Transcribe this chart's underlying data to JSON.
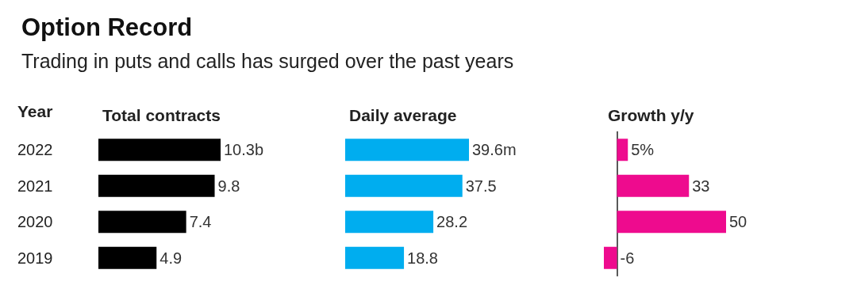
{
  "chart_data": [
    {
      "type": "other",
      "title": "Option Record",
      "subtitle": "Trading in puts and calls has surged over the past years"
    },
    {
      "type": "bar",
      "orientation": "horizontal",
      "title": "Total contracts",
      "ylabel": "Year",
      "categories": [
        "2022",
        "2021",
        "2020",
        "2019"
      ],
      "values": [
        10.3,
        9.8,
        7.4,
        4.9
      ],
      "value_labels": [
        "10.3b",
        "9.8",
        "7.4",
        "4.9"
      ],
      "color": "#000000",
      "tick_labels": "y"
    },
    {
      "type": "bar",
      "orientation": "horizontal",
      "title": "Daily average",
      "categories": [
        "2022",
        "2021",
        "2020",
        "2019"
      ],
      "values": [
        39.6,
        37.5,
        28.2,
        18.8
      ],
      "value_labels": [
        "39.6m",
        "37.5",
        "28.2",
        "18.8"
      ],
      "color": "#00adef",
      "tick_labels": false
    },
    {
      "type": "bar",
      "orientation": "horizontal",
      "title": "Growth y/y",
      "categories": [
        "2022",
        "2021",
        "2020",
        "2019"
      ],
      "values": [
        5,
        33,
        50,
        -6
      ],
      "value_labels": [
        "5%",
        "33",
        "50",
        "-6"
      ],
      "color": "#ee0b8e",
      "tick_labels": false
    }
  ]
}
